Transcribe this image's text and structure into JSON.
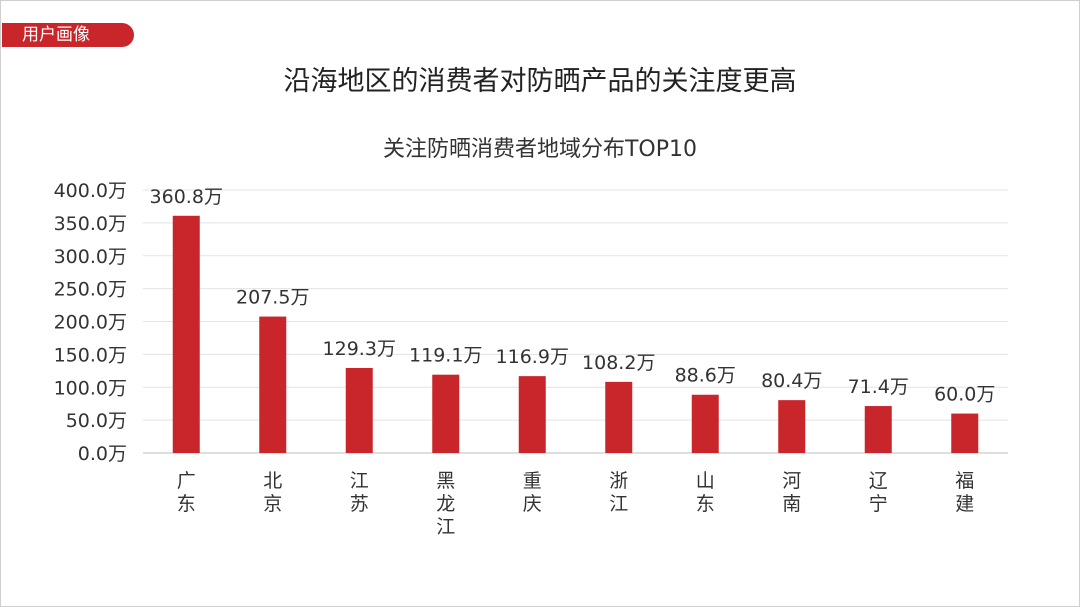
{
  "badge": {
    "label": "用户画像"
  },
  "headline": "沿海地区的消费者对防晒产品的关注度更高",
  "colors": {
    "bar": "#c8262b",
    "badge": "#c8262b",
    "grid": "#e3e3e3",
    "text": "#333333"
  },
  "chart_data": {
    "type": "bar",
    "title": "关注防晒消费者地域分布TOP10",
    "categories": [
      "广东",
      "北京",
      "江苏",
      "黑龙江",
      "重庆",
      "浙江",
      "山东",
      "河南",
      "辽宁",
      "福建"
    ],
    "values": [
      360.8,
      207.5,
      129.3,
      119.1,
      116.9,
      108.2,
      88.6,
      80.4,
      71.4,
      60.0
    ],
    "data_labels": [
      "360.8万",
      "207.5万",
      "129.3万",
      "119.1万",
      "116.9万",
      "108.2万",
      "88.6万",
      "80.4万",
      "71.4万",
      "60.0万"
    ],
    "y_ticks": [
      "0.0万",
      "50.0万",
      "100.0万",
      "150.0万",
      "200.0万",
      "250.0万",
      "300.0万",
      "350.0万",
      "400.0万"
    ],
    "ylim": [
      0,
      400
    ],
    "grid": true,
    "legend": false
  }
}
